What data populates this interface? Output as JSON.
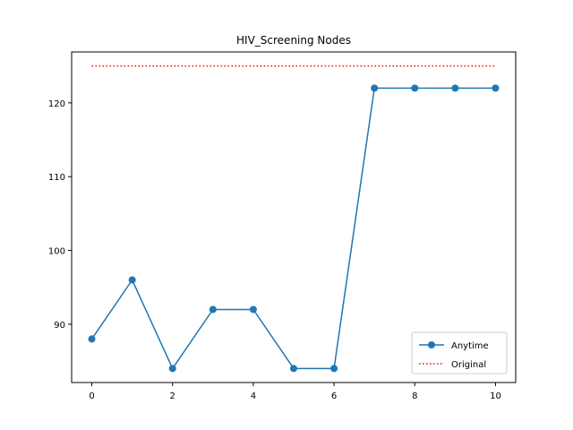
{
  "chart_data": {
    "type": "line",
    "title": "HIV_Screening Nodes",
    "xlabel": "",
    "ylabel": "",
    "xlim": [
      -0.5,
      10.5
    ],
    "ylim": [
      82.1,
      126.9
    ],
    "xticks": [
      0,
      2,
      4,
      6,
      8,
      10
    ],
    "yticks": [
      90,
      100,
      110,
      120
    ],
    "grid": false,
    "legend_position": "lower-right",
    "series": [
      {
        "name": "Anytime",
        "color": "#1f77b4",
        "style": "solid-with-markers",
        "x": [
          0,
          1,
          2,
          3,
          4,
          5,
          6,
          7,
          8,
          9,
          10
        ],
        "y": [
          88,
          96,
          84,
          92,
          92,
          84,
          84,
          122,
          122,
          122,
          122
        ]
      },
      {
        "name": "Original",
        "color": "#ff0000",
        "style": "dotted",
        "x": [
          0,
          10
        ],
        "y": [
          125,
          125
        ]
      }
    ]
  }
}
